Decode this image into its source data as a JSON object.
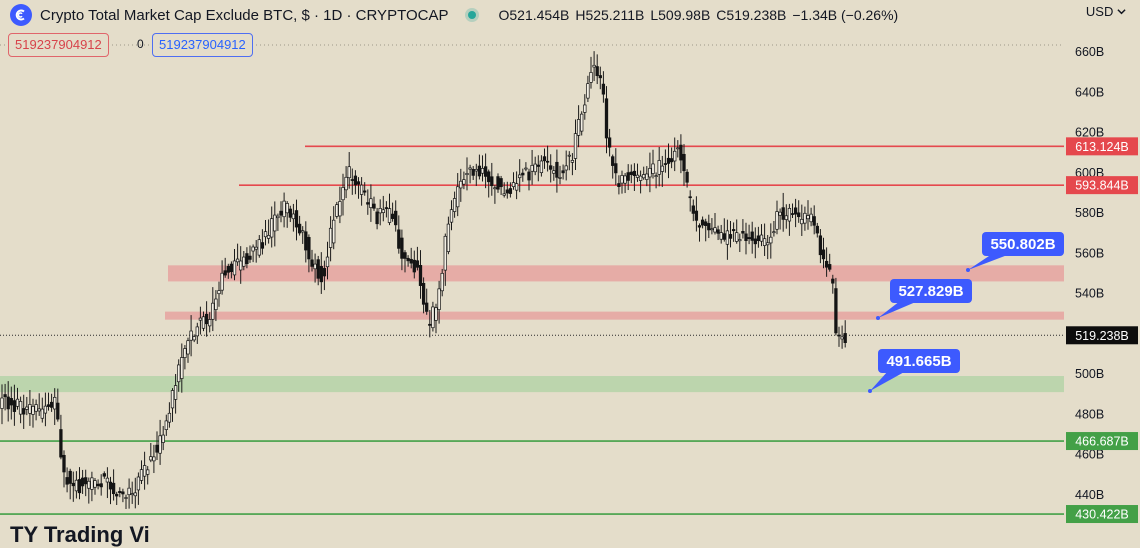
{
  "header": {
    "title": "Crypto Total Market Cap Exclude BTC, $ · 1D · CRYPTOCAP",
    "ohlc": {
      "open": "O521.454B",
      "high": "H525.211B",
      "low": "L509.98B",
      "close": "C519.238B",
      "change": "−1.34B (−0.26%)"
    },
    "currency": "USD",
    "currency_icon": "chevron-down-icon",
    "logo_icon": "cryptocap-logo-icon",
    "status_color": "#26a69a"
  },
  "inputs": {
    "first_value": "519237904912",
    "separator": "0",
    "second_value": "519237904912"
  },
  "watermark": "TY Trading Vi",
  "chart_data": {
    "type": "candlestick",
    "y_axis": {
      "ylim": [
        420,
        666
      ],
      "ticks": [
        {
          "value": 440,
          "label": "440B"
        },
        {
          "value": 460,
          "label": "460B"
        },
        {
          "value": 480,
          "label": "480B"
        },
        {
          "value": 500,
          "label": "500B"
        },
        {
          "value": 520,
          "label": "520B"
        },
        {
          "value": 540,
          "label": "540B"
        },
        {
          "value": 560,
          "label": "560B"
        },
        {
          "value": 580,
          "label": "580B"
        },
        {
          "value": 600,
          "label": "600B"
        },
        {
          "value": 620,
          "label": "620B"
        },
        {
          "value": 640,
          "label": "640B"
        },
        {
          "value": 660,
          "label": "660B"
        }
      ]
    },
    "last_price": {
      "value": 519.238,
      "label": "519.238B"
    },
    "horizontal_levels": [
      {
        "value": 613.124,
        "label": "613.124B",
        "color": "#e5484d"
      },
      {
        "value": 593.844,
        "label": "593.844B",
        "color": "#e5484d"
      },
      {
        "value": 466.687,
        "label": "466.687B",
        "color": "#43a047"
      },
      {
        "value": 430.422,
        "label": "430.422B",
        "color": "#43a047"
      }
    ],
    "zones": [
      {
        "low": 546,
        "high": 554,
        "color": "#e6a3a0"
      },
      {
        "low": 527,
        "high": 531,
        "color": "#e6a3a0"
      },
      {
        "low": 491,
        "high": 499,
        "color": "#b5d3a8"
      }
    ],
    "callouts": [
      {
        "label": "550.802B",
        "value": 550.802,
        "color": "#3d5afe"
      },
      {
        "label": "527.829B",
        "value": 527.829,
        "color": "#3d5afe"
      },
      {
        "label": "491.665B",
        "value": 491.665,
        "color": "#3d5afe"
      }
    ],
    "price_path": [
      [
        0,
        487
      ],
      [
        20,
        484
      ],
      [
        40,
        481
      ],
      [
        58,
        485
      ],
      [
        64,
        452
      ],
      [
        75,
        443
      ],
      [
        90,
        446
      ],
      [
        105,
        447
      ],
      [
        120,
        440
      ],
      [
        135,
        442
      ],
      [
        150,
        455
      ],
      [
        165,
        470
      ],
      [
        180,
        500
      ],
      [
        195,
        522
      ],
      [
        210,
        528
      ],
      [
        225,
        550
      ],
      [
        240,
        555
      ],
      [
        255,
        560
      ],
      [
        270,
        570
      ],
      [
        285,
        583
      ],
      [
        300,
        576
      ],
      [
        315,
        555
      ],
      [
        325,
        548
      ],
      [
        335,
        575
      ],
      [
        350,
        600
      ],
      [
        365,
        590
      ],
      [
        380,
        578
      ],
      [
        395,
        580
      ],
      [
        405,
        556
      ],
      [
        420,
        552
      ],
      [
        430,
        525
      ],
      [
        440,
        535
      ],
      [
        450,
        575
      ],
      [
        465,
        598
      ],
      [
        480,
        603
      ],
      [
        495,
        595
      ],
      [
        510,
        590
      ],
      [
        525,
        598
      ],
      [
        545,
        605
      ],
      [
        560,
        600
      ],
      [
        575,
        610
      ],
      [
        585,
        632
      ],
      [
        595,
        655
      ],
      [
        605,
        643
      ],
      [
        610,
        612
      ],
      [
        620,
        595
      ],
      [
        635,
        600
      ],
      [
        650,
        598
      ],
      [
        665,
        605
      ],
      [
        680,
        612
      ],
      [
        690,
        590
      ],
      [
        700,
        575
      ],
      [
        710,
        570
      ],
      [
        725,
        568
      ],
      [
        740,
        569
      ],
      [
        755,
        566
      ],
      [
        770,
        565
      ],
      [
        780,
        580
      ],
      [
        795,
        580
      ],
      [
        805,
        575
      ],
      [
        815,
        580
      ],
      [
        822,
        560
      ],
      [
        828,
        553
      ],
      [
        834,
        549
      ],
      [
        838,
        521
      ],
      [
        846,
        519.238
      ]
    ]
  }
}
